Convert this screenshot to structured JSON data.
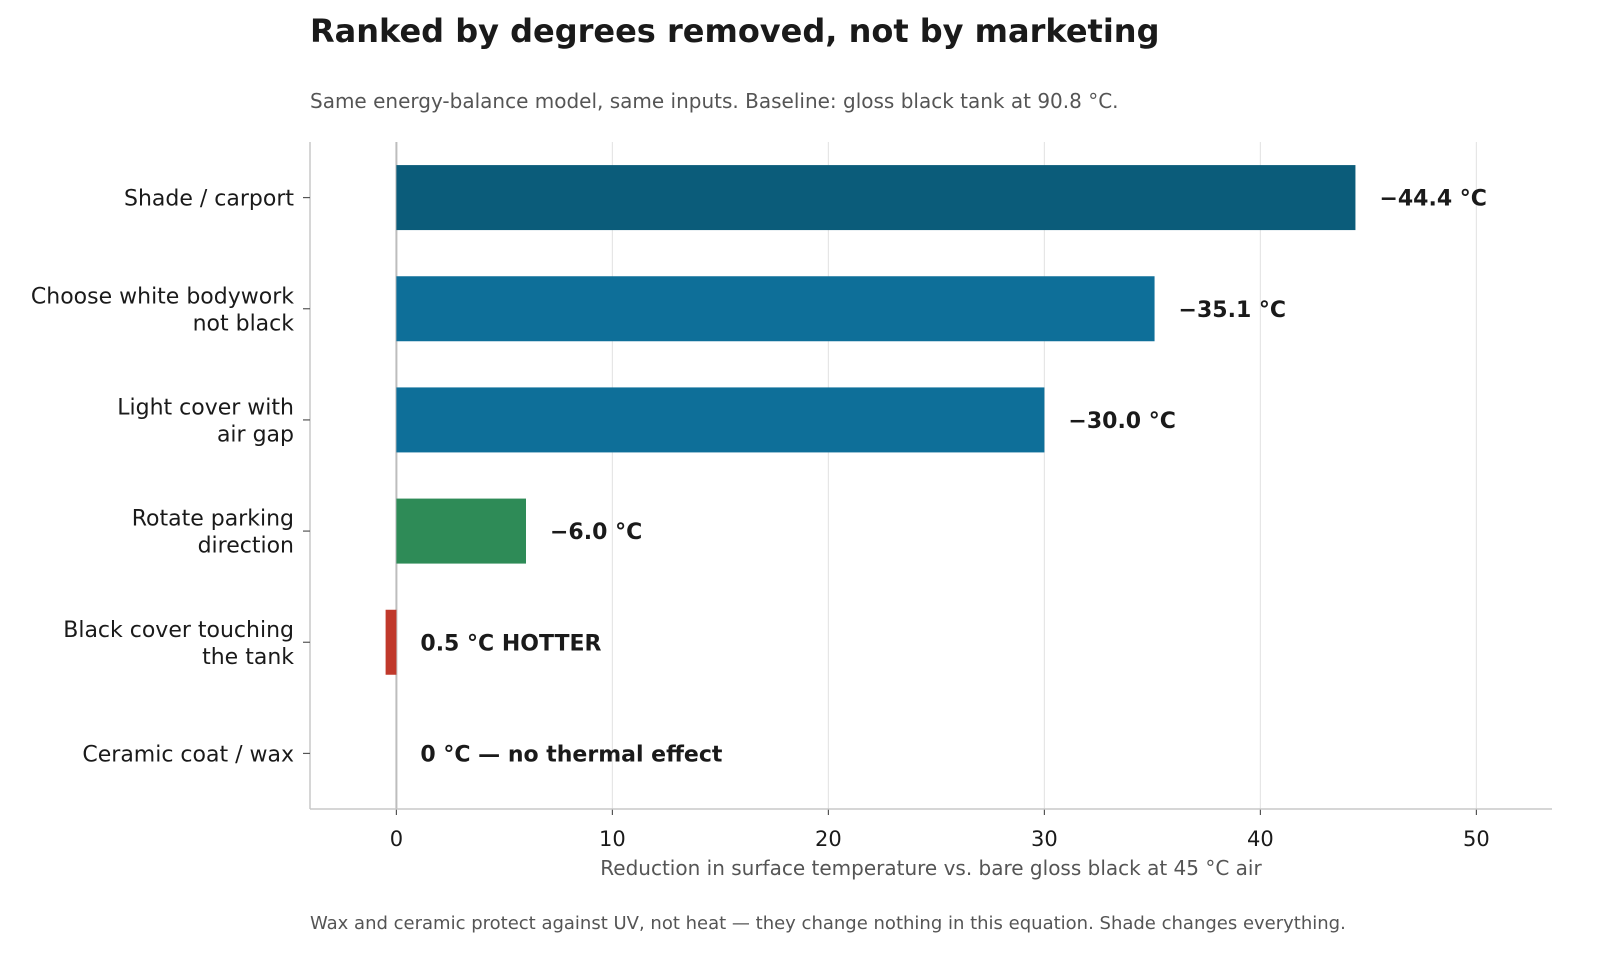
{
  "chart_data": {
    "type": "bar",
    "orientation": "horizontal",
    "title": "Ranked by degrees removed, not by marketing",
    "subtitle": "Same energy-balance model, same inputs. Baseline: gloss black tank at 90.8 °C.",
    "xlabel": "Reduction in surface temperature vs. bare gloss black at 45 °C air",
    "footnote": "Wax and ceramic protect against UV, not heat — they change nothing in this equation. Shade changes everything.",
    "xlim": [
      -4,
      53.5
    ],
    "xticks": [
      0,
      10,
      20,
      30,
      40,
      50
    ],
    "grid": "vertical",
    "bars": [
      {
        "label_lines": [
          "Shade / carport"
        ],
        "value": 44.4,
        "color": "#0b5c7a",
        "value_label": "−44.4 °C"
      },
      {
        "label_lines": [
          "Choose white bodywork",
          "not black"
        ],
        "value": 35.1,
        "color": "#0e6f99",
        "value_label": "−35.1 °C"
      },
      {
        "label_lines": [
          "Light cover with",
          "air gap"
        ],
        "value": 30.0,
        "color": "#0e6f99",
        "value_label": "−30.0 °C"
      },
      {
        "label_lines": [
          "Rotate parking",
          "direction"
        ],
        "value": 6.0,
        "color": "#2e8b57",
        "value_label": "−6.0 °C"
      },
      {
        "label_lines": [
          "Black cover touching",
          "the tank"
        ],
        "value": -0.5,
        "color": "#c0392b",
        "value_label": "0.5 °C HOTTER"
      },
      {
        "label_lines": [
          "Ceramic coat / wax"
        ],
        "value": 0,
        "color": "#999999",
        "value_label": "0 °C — no thermal effect"
      }
    ]
  }
}
